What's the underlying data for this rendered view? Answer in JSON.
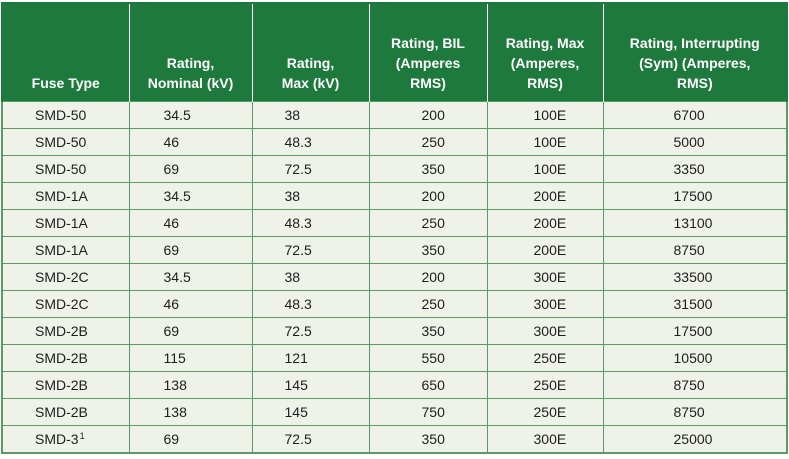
{
  "table": {
    "headers": [
      {
        "key": "fuse_type",
        "label": "Fuse Type"
      },
      {
        "key": "nominal",
        "label": "Rating, Nominal (kV)"
      },
      {
        "key": "max_kv",
        "label": "Rating, Max (kV)"
      },
      {
        "key": "bil",
        "label": "Rating, BIL (Amperes RMS)"
      },
      {
        "key": "max_amp",
        "label": "Rating, Max (Amperes, RMS)"
      },
      {
        "key": "interrupting",
        "label": "Rating, Interrupting (Sym) (Amperes, RMS)"
      }
    ],
    "rows": [
      {
        "fuse_type": "SMD-50",
        "sup": "",
        "nominal": "34.5",
        "max_kv": "38",
        "bil": "200",
        "max_amp": "100E",
        "interrupting": "6700"
      },
      {
        "fuse_type": "SMD-50",
        "sup": "",
        "nominal": "46",
        "max_kv": "48.3",
        "bil": "250",
        "max_amp": "100E",
        "interrupting": "5000"
      },
      {
        "fuse_type": "SMD-50",
        "sup": "",
        "nominal": "69",
        "max_kv": "72.5",
        "bil": "350",
        "max_amp": "100E",
        "interrupting": "3350"
      },
      {
        "fuse_type": "SMD-1A",
        "sup": "",
        "nominal": "34.5",
        "max_kv": "38",
        "bil": "200",
        "max_amp": "200E",
        "interrupting": "17500"
      },
      {
        "fuse_type": "SMD-1A",
        "sup": "",
        "nominal": "46",
        "max_kv": "48.3",
        "bil": "250",
        "max_amp": "200E",
        "interrupting": "13100"
      },
      {
        "fuse_type": "SMD-1A",
        "sup": "",
        "nominal": "69",
        "max_kv": "72.5",
        "bil": "350",
        "max_amp": "200E",
        "interrupting": "8750"
      },
      {
        "fuse_type": "SMD-2C",
        "sup": "",
        "nominal": "34.5",
        "max_kv": "38",
        "bil": "200",
        "max_amp": "300E",
        "interrupting": "33500"
      },
      {
        "fuse_type": "SMD-2C",
        "sup": "",
        "nominal": "46",
        "max_kv": "48.3",
        "bil": "250",
        "max_amp": "300E",
        "interrupting": "31500"
      },
      {
        "fuse_type": "SMD-2B",
        "sup": "",
        "nominal": "69",
        "max_kv": "72.5",
        "bil": "350",
        "max_amp": "300E",
        "interrupting": "17500"
      },
      {
        "fuse_type": "SMD-2B",
        "sup": "",
        "nominal": "115",
        "max_kv": "121",
        "bil": "550",
        "max_amp": "250E",
        "interrupting": "10500"
      },
      {
        "fuse_type": "SMD-2B",
        "sup": "",
        "nominal": "138",
        "max_kv": "145",
        "bil": "650",
        "max_amp": "250E",
        "interrupting": "8750"
      },
      {
        "fuse_type": "SMD-2B",
        "sup": "",
        "nominal": "138",
        "max_kv": "145",
        "bil": "750",
        "max_amp": "250E",
        "interrupting": "8750"
      },
      {
        "fuse_type": "SMD-3",
        "sup": "1",
        "nominal": "69",
        "max_kv": "72.5",
        "bil": "350",
        "max_amp": "300E",
        "interrupting": "25000"
      }
    ]
  },
  "colors": {
    "header_bg": "#1d7a3c",
    "row_bg": "#eef2e9",
    "grid": "#5a9a66"
  }
}
